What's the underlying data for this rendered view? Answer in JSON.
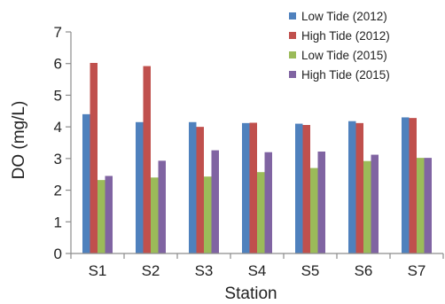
{
  "chart_data": {
    "type": "bar",
    "categories": [
      "S1",
      "S2",
      "S3",
      "S4",
      "S5",
      "S6",
      "S7"
    ],
    "series": [
      {
        "name": "Low Tide (2012)",
        "color": "#4f81bd",
        "values": [
          4.4,
          4.15,
          4.15,
          4.12,
          4.1,
          4.18,
          4.3
        ]
      },
      {
        "name": "High Tide (2012)",
        "color": "#c0504d",
        "values": [
          6.02,
          5.92,
          4.0,
          4.13,
          4.06,
          4.12,
          4.28
        ]
      },
      {
        "name": "Low Tide (2015)",
        "color": "#9bbb59",
        "values": [
          2.32,
          2.4,
          2.43,
          2.57,
          2.7,
          2.92,
          3.02
        ]
      },
      {
        "name": "High Tide (2015)",
        "color": "#8064a2",
        "values": [
          2.45,
          2.93,
          3.26,
          3.2,
          3.22,
          3.12,
          3.02
        ]
      }
    ],
    "title": "",
    "xlabel": "Station",
    "ylabel": "DO (mg/L)",
    "ylim": [
      0,
      7
    ],
    "yticks": [
      "0",
      "1",
      "2",
      "3",
      "4",
      "5",
      "6",
      "7"
    ],
    "grid": false,
    "legend_position": "top-right"
  }
}
